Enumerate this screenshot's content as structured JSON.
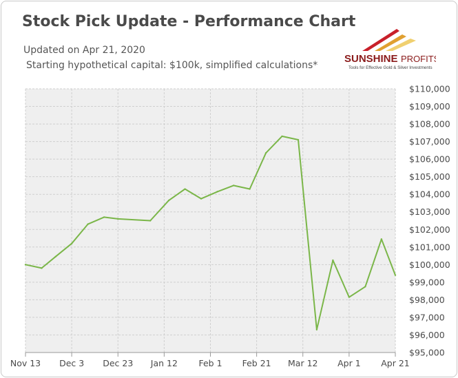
{
  "header": {
    "title": "Stock Pick Update - Performance Chart",
    "subtitle_line1": "Updated on Apr 21, 2020",
    "subtitle_line2": "Starting hypothetical capital: $100k, simplified calculations*"
  },
  "logo": {
    "brand_bold": "SUNSHINE",
    "brand_light": "PROFITS",
    "tagline": "Tools for Effective Gold & Silver Investments",
    "colors": [
      "#c8202a",
      "#e0a030",
      "#f0d070"
    ]
  },
  "colors": {
    "line": "#7ab648",
    "plot_background": "#efefef",
    "grid": "#cfcfcf"
  },
  "chart_data": {
    "type": "line",
    "title": "Stock Pick Update - Performance Chart",
    "xlabel": "",
    "ylabel": "",
    "x_tick_labels": [
      "Nov 13",
      "Dec 3",
      "Dec 23",
      "Jan 12",
      "Feb 1",
      "Feb 21",
      "Mar 12",
      "Apr 1",
      "Apr 21"
    ],
    "y_tick_labels": [
      "$95,000",
      "$96,000",
      "$97,000",
      "$98,000",
      "$99,000",
      "$100,000",
      "$101,000",
      "$102,000",
      "$103,000",
      "$104,000",
      "$105,000",
      "$106,000",
      "$107,000",
      "$108,000",
      "$109,000",
      "$110,000"
    ],
    "ylim": [
      95000,
      110000
    ],
    "xlim": [
      "2019-11-13",
      "2020-04-21"
    ],
    "y_axis_position": "right",
    "grid": true,
    "legend": "none",
    "series": [
      {
        "points": [
          {
            "x": "2019-11-13",
            "y": 100000
          },
          {
            "x": "2019-11-20",
            "y": 99800
          },
          {
            "x": "2019-11-26",
            "y": 100450
          },
          {
            "x": "2019-12-03",
            "y": 101200
          },
          {
            "x": "2019-12-10",
            "y": 102300
          },
          {
            "x": "2019-12-17",
            "y": 102700
          },
          {
            "x": "2019-12-23",
            "y": 102600
          },
          {
            "x": "2020-01-06",
            "y": 102500
          },
          {
            "x": "2020-01-14",
            "y": 103650
          },
          {
            "x": "2020-01-21",
            "y": 104300
          },
          {
            "x": "2020-01-28",
            "y": 103750
          },
          {
            "x": "2020-02-04",
            "y": 104150
          },
          {
            "x": "2020-02-11",
            "y": 104500
          },
          {
            "x": "2020-02-18",
            "y": 104300
          },
          {
            "x": "2020-02-25",
            "y": 106350
          },
          {
            "x": "2020-03-03",
            "y": 107300
          },
          {
            "x": "2020-03-10",
            "y": 107100
          },
          {
            "x": "2020-03-18",
            "y": 96300
          },
          {
            "x": "2020-03-25",
            "y": 100250
          },
          {
            "x": "2020-04-01",
            "y": 98150
          },
          {
            "x": "2020-04-08",
            "y": 98750
          },
          {
            "x": "2020-04-15",
            "y": 101450
          },
          {
            "x": "2020-04-21",
            "y": 99400
          }
        ]
      }
    ]
  }
}
